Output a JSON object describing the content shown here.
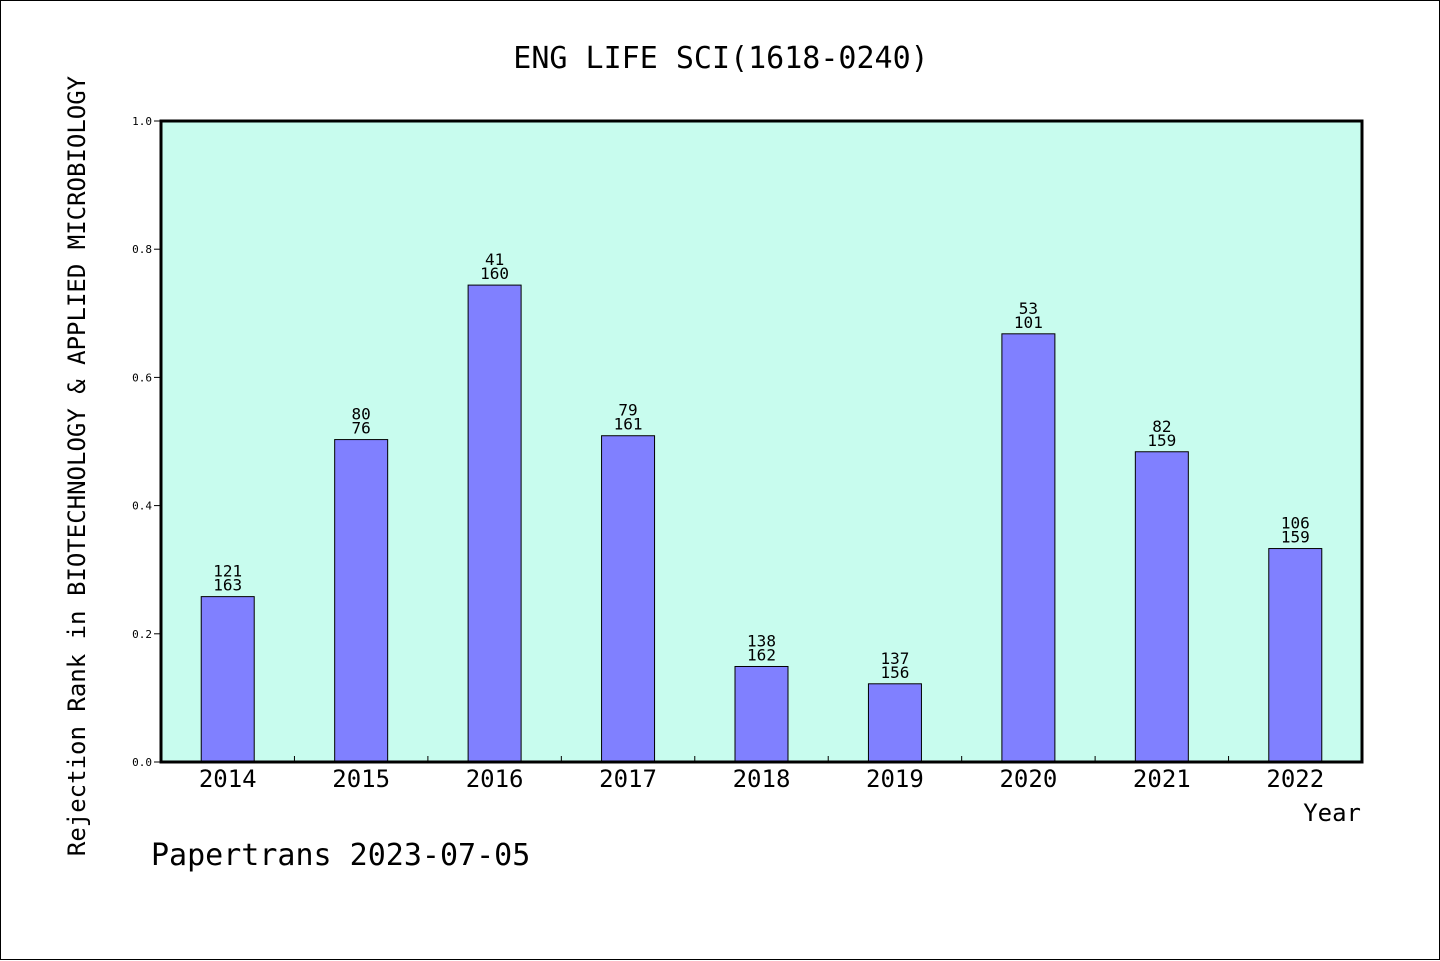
{
  "chart_data": {
    "type": "bar",
    "title": "ENG LIFE SCI(1618-0240)",
    "ylabel": "Rejection Rank in BIOTECHNOLOGY & APPLIED MICROBIOLOGY",
    "xlabel": "Year",
    "ylim": [
      0,
      1.0
    ],
    "yticks": [
      "0.0",
      "0.2",
      "0.4",
      "0.6",
      "0.8",
      "1.0"
    ],
    "ytick_values": [
      0,
      0.2,
      0.4,
      0.6,
      0.8,
      1.0
    ],
    "categories": [
      "2014",
      "2015",
      "2016",
      "2017",
      "2018",
      "2019",
      "2020",
      "2021",
      "2022"
    ],
    "values": [
      0.258,
      0.503,
      0.744,
      0.509,
      0.149,
      0.122,
      0.668,
      0.484,
      0.333
    ],
    "label_top": [
      "121",
      "80",
      "41",
      "79",
      "138",
      "137",
      "53",
      "82",
      "106"
    ],
    "label_bottom": [
      "163",
      "76",
      "160",
      "161",
      "162",
      "156",
      "101",
      "159",
      "159"
    ],
    "bar_color": "#8080ff",
    "plot_background": "#c8fcee",
    "grid": false
  },
  "footer": "Papertrans 2023-07-05"
}
